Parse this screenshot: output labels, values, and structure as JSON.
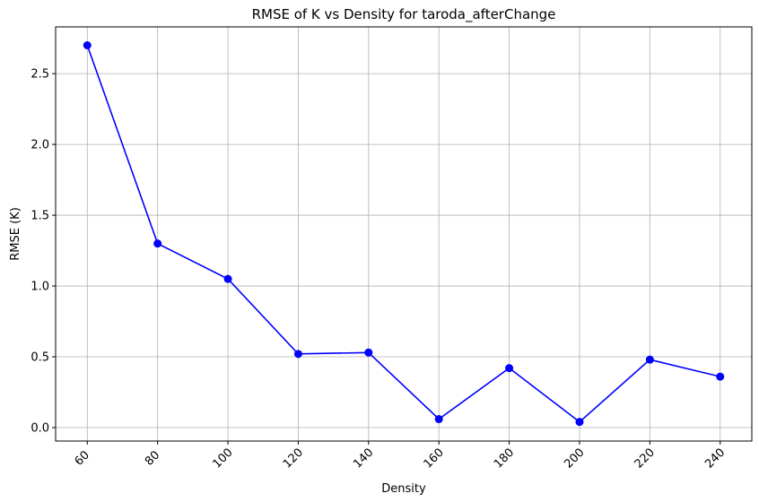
{
  "chart_data": {
    "type": "line",
    "title": "RMSE of K vs Density for taroda_afterChange",
    "xlabel": "Density",
    "ylabel": "RMSE (K)",
    "x": [
      60,
      80,
      100,
      120,
      140,
      160,
      180,
      200,
      220,
      240
    ],
    "x_tick_labels": [
      "60",
      "80",
      "100",
      "120",
      "140",
      "160",
      "180",
      "200",
      "220",
      "240"
    ],
    "y_ticks": [
      0.0,
      0.5,
      1.0,
      1.5,
      2.0,
      2.5
    ],
    "y_tick_labels": [
      "0.0",
      "0.5",
      "1.0",
      "1.5",
      "2.0",
      "2.5"
    ],
    "xlim": [
      51,
      249
    ],
    "ylim": [
      -0.095,
      2.83
    ],
    "grid": true,
    "series": [
      {
        "values": [
          2.7,
          1.3,
          1.05,
          0.52,
          0.53,
          0.06,
          0.42,
          0.04,
          0.48,
          0.36
        ],
        "color": "#0000ff",
        "marker": "circle"
      }
    ]
  }
}
